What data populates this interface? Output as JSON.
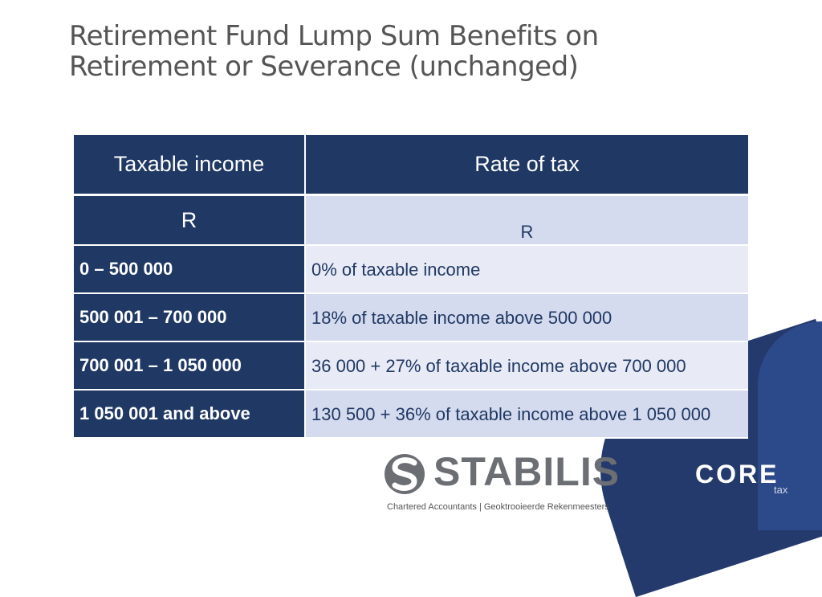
{
  "title": {
    "line1": "Retirement Fund Lump Sum Benefits on",
    "line2": "Retirement or Severance (unchanged)"
  },
  "table": {
    "headers": [
      "Taxable income",
      "Rate of tax"
    ],
    "units": [
      "R",
      "R"
    ],
    "rows": [
      {
        "band": "0 – 500 000",
        "rate": "0% of taxable income"
      },
      {
        "band": "500 001 – 700 000",
        "rate": "18% of taxable income above 500 000"
      },
      {
        "band": "700 001 – 1 050 000",
        "rate": "36 000 + 27% of taxable income above 700 000"
      },
      {
        "band": "1 050 001 and above",
        "rate": "130 500 + 36% of taxable income above 1 050 000"
      }
    ]
  },
  "logos": {
    "stabilis_name": "STABILIS",
    "stabilis_tagline": "Chartered Accountants | Geoktrooieerde Rekenmeesters",
    "core_name": "CORE",
    "core_sub": "tax"
  },
  "colors": {
    "header_navy": "#203864",
    "row_light": "#e8ebf5",
    "row_mid": "#d5dbee",
    "title_grey": "#555555",
    "core_accent": "#e8742a"
  }
}
